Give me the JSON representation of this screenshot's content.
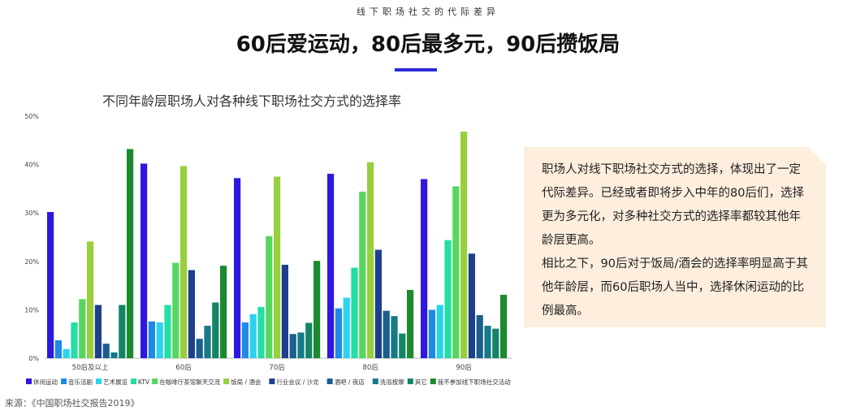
{
  "header": {
    "top_label": "线下职场社交的代际差异",
    "title": "60后爱运动，80后最多元，90后攒饭局"
  },
  "chart_data": {
    "type": "bar",
    "title": "不同年龄层职场人对各种线下职场社交方式的选择率",
    "categories": [
      "50后及以上",
      "60后",
      "70后",
      "80后",
      "90后"
    ],
    "y_ticks": [
      "0%",
      "10%",
      "20%",
      "30%",
      "40%",
      "50%"
    ],
    "ylim": [
      0,
      50
    ],
    "grid": false,
    "legend_position": "bottom",
    "series": [
      {
        "name": "休闲运动",
        "color": "#2e18e0",
        "values": [
          30.2,
          40.2,
          37.2,
          38.1,
          37.0
        ]
      },
      {
        "name": "音乐活剧",
        "color": "#1e8ae6",
        "values": [
          3.7,
          7.6,
          7.4,
          10.3,
          10.0
        ]
      },
      {
        "name": "艺术展览",
        "color": "#2ed2ec",
        "values": [
          1.9,
          7.4,
          9.1,
          12.5,
          11.0
        ]
      },
      {
        "name": "KTV",
        "color": "#22dfa4",
        "values": [
          7.4,
          11.0,
          10.6,
          18.7,
          24.4
        ]
      },
      {
        "name": "在咖啡厅茶馆聊天交流",
        "color": "#56d65e",
        "values": [
          12.2,
          19.7,
          25.2,
          34.4,
          35.5
        ]
      },
      {
        "name": "饭局 / 酒会",
        "color": "#98cf3c",
        "values": [
          24.1,
          39.7,
          37.5,
          40.5,
          46.8
        ]
      },
      {
        "name": "行业会议 / 沙龙",
        "color": "#1e3f8c",
        "values": [
          11.0,
          18.2,
          19.3,
          22.4,
          21.6
        ]
      },
      {
        "name": "酒吧 / 夜店",
        "color": "#1a5f8e",
        "values": [
          3.0,
          4.0,
          5.0,
          9.8,
          8.9
        ]
      },
      {
        "name": "洗浴按摩",
        "color": "#167a88",
        "values": [
          1.2,
          6.7,
          5.3,
          8.7,
          6.7
        ]
      },
      {
        "name": "其它",
        "color": "#138566",
        "values": [
          11.0,
          11.5,
          7.3,
          5.1,
          6.1
        ]
      },
      {
        "name": "我不参加线下职场社交活动",
        "color": "#1b8a2e",
        "values": [
          43.2,
          19.1,
          20.1,
          14.1,
          13.1
        ]
      }
    ]
  },
  "note": {
    "paragraph1": "职场人对线下职场社交方式的选择，体现出了一定代际差异。已经或者即将步入中年的80后们，选择更为多元化，对多种社交方式的选择率都较其他年龄层更高。",
    "paragraph2": "相比之下，90后对于饭局/酒会的选择率明显高于其他年龄层，而60后职场人当中，选择休闲运动的比例最高。"
  },
  "source": "来源：《中国职场社交报告2019》"
}
